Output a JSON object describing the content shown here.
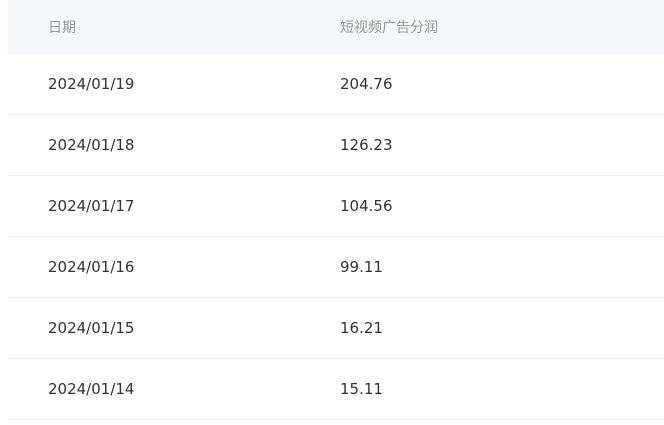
{
  "table": {
    "headers": [
      "日期",
      "短视频广告分润"
    ],
    "rows": [
      [
        "2024/01/19",
        "204.76"
      ],
      [
        "2024/01/18",
        "126.23"
      ],
      [
        "2024/01/17",
        "104.56"
      ],
      [
        "2024/01/16",
        "99.11"
      ],
      [
        "2024/01/15",
        "16.21"
      ],
      [
        "2024/01/14",
        "15.11"
      ]
    ]
  }
}
